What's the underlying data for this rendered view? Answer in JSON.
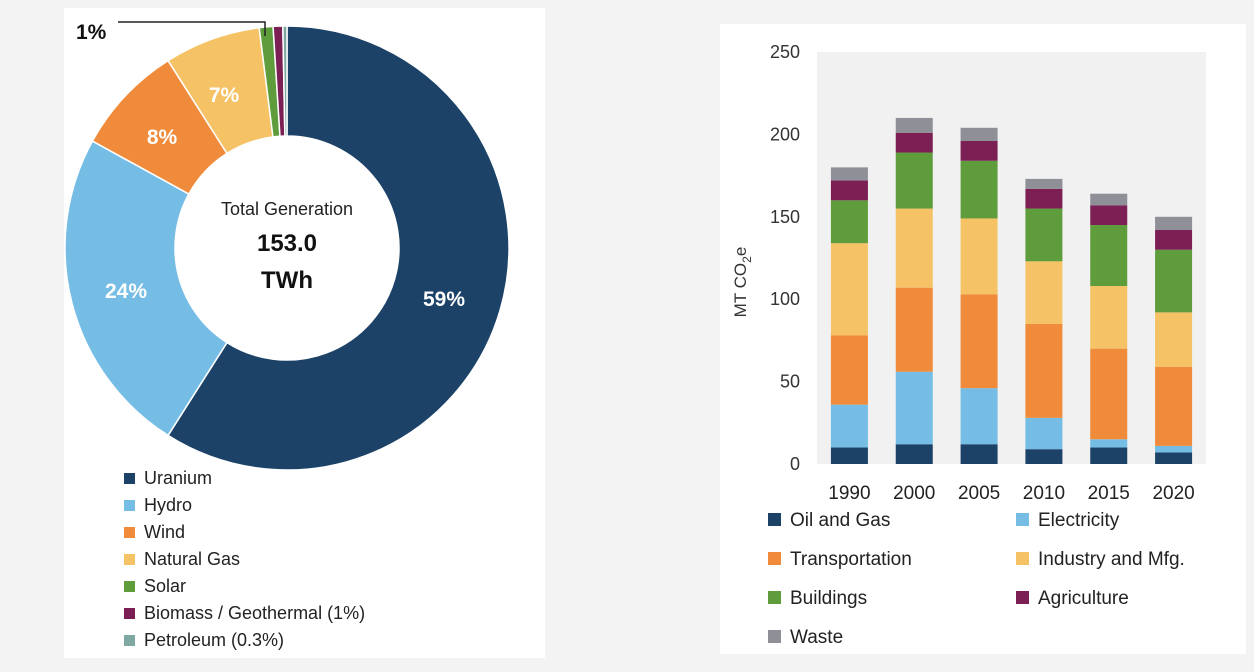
{
  "chart_data": [
    {
      "type": "pie",
      "center_title": "Total Generation",
      "center_value": "153.0",
      "center_unit": "TWh",
      "slices": [
        {
          "name": "Uranium",
          "value": 59,
          "label": "59%",
          "color": "#1d4268"
        },
        {
          "name": "Hydro",
          "value": 24,
          "label": "24%",
          "color": "#76bde5"
        },
        {
          "name": "Wind",
          "value": 8,
          "label": "8%",
          "color": "#ef8b3a"
        },
        {
          "name": "Natural Gas",
          "value": 7,
          "label": "7%",
          "color": "#f5c266"
        },
        {
          "name": "Solar",
          "value": 1,
          "label": "1%",
          "color": "#5f9c3c"
        },
        {
          "name": "Biomass / Geothermal (1%)",
          "value": 0.7,
          "label": "",
          "color": "#7b1f55"
        },
        {
          "name": "Petroleum (0.3%)",
          "value": 0.3,
          "label": "",
          "color": "#7fa8a3"
        }
      ],
      "legend": [
        "Uranium",
        "Hydro",
        "Wind",
        "Natural Gas",
        "Solar",
        "Biomass / Geothermal (1%)",
        "Petroleum (0.3%)"
      ]
    },
    {
      "type": "bar",
      "stacked": true,
      "ylabel": "MT CO2e",
      "ylim": [
        0,
        250
      ],
      "yticks": [
        0,
        50,
        100,
        150,
        200,
        250
      ],
      "grid": false,
      "categories": [
        "1990",
        "2000",
        "2005",
        "2010",
        "2015",
        "2020"
      ],
      "series": [
        {
          "name": "Oil and Gas",
          "color": "#1d4268",
          "values": [
            10,
            12,
            12,
            9,
            10,
            7
          ]
        },
        {
          "name": "Electricity",
          "color": "#76bde5",
          "values": [
            26,
            44,
            34,
            19,
            5,
            4
          ]
        },
        {
          "name": "Transportation",
          "color": "#ef8b3a",
          "values": [
            42,
            51,
            57,
            57,
            55,
            48
          ]
        },
        {
          "name": "Industry and Mfg.",
          "color": "#f5c266",
          "values": [
            56,
            48,
            46,
            38,
            38,
            33
          ]
        },
        {
          "name": "Buildings",
          "color": "#5f9c3c",
          "values": [
            26,
            34,
            35,
            32,
            37,
            38
          ]
        },
        {
          "name": "Agriculture",
          "color": "#7b1f55",
          "values": [
            12,
            12,
            12,
            12,
            12,
            12
          ]
        },
        {
          "name": "Waste",
          "color": "#8e8f97",
          "values": [
            8,
            9,
            8,
            6,
            7,
            8
          ]
        }
      ],
      "legend": [
        "Oil and Gas",
        "Electricity",
        "Transportation",
        "Industry and Mfg.",
        "Buildings",
        "Agriculture",
        "Waste"
      ]
    }
  ]
}
